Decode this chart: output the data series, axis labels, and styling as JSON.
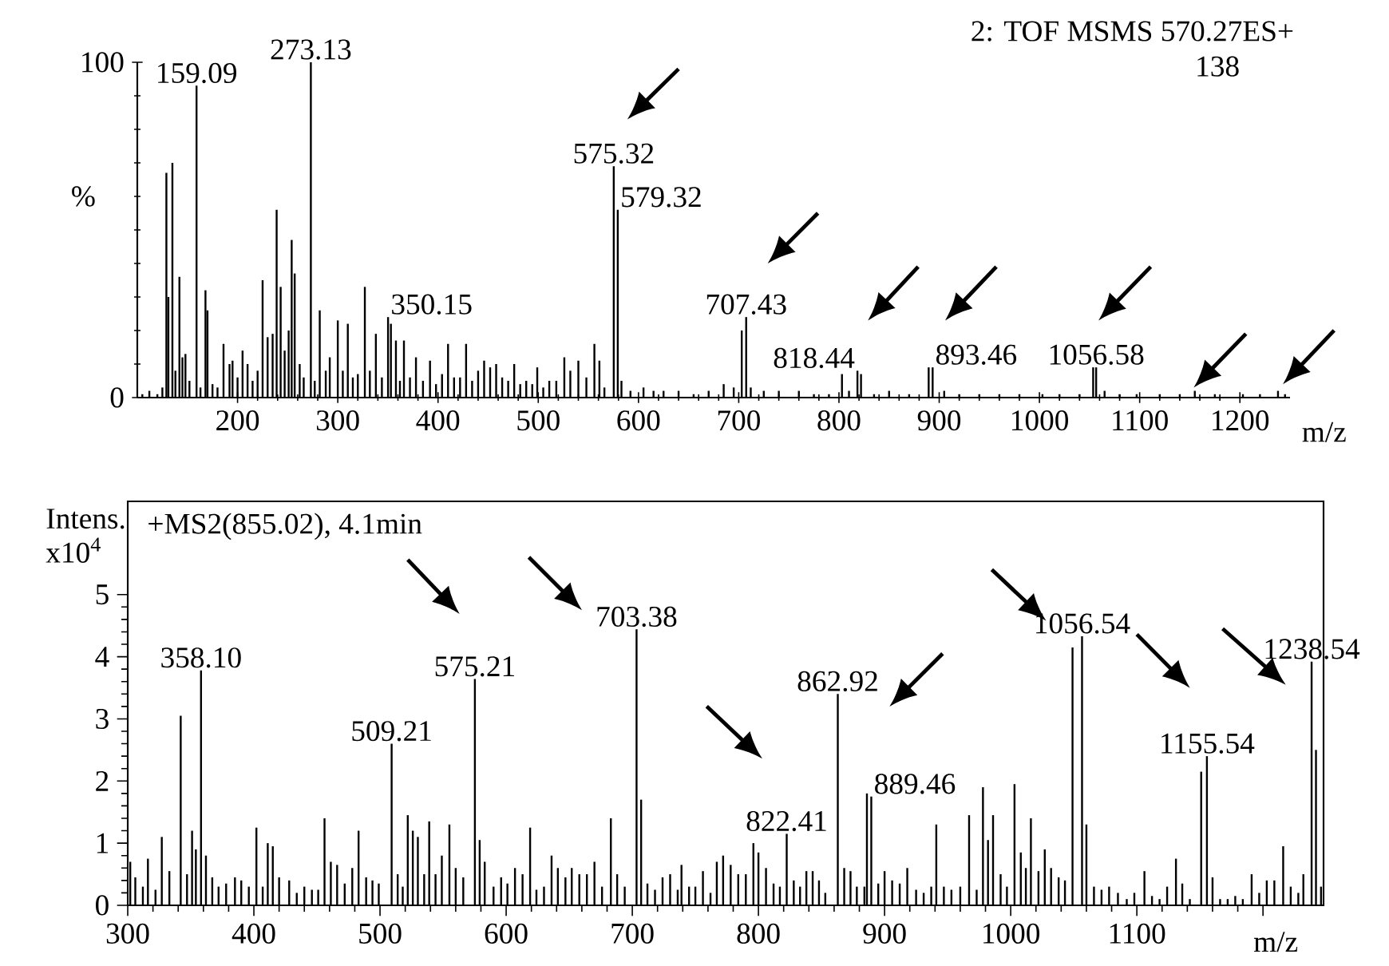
{
  "chart_data": [
    {
      "type": "bar",
      "title": "2: TOF MSMS 570.27ES+",
      "subtitle": "138",
      "xlabel": "m/z",
      "ylabel": "%",
      "color": "#000000",
      "xlim": [
        100,
        1250
      ],
      "ylim": [
        0,
        100
      ],
      "xticks": [
        200,
        300,
        400,
        500,
        600,
        700,
        800,
        900,
        1000,
        1100,
        1200
      ],
      "yticks": [
        0,
        100
      ],
      "x": [
        105,
        112,
        120,
        125,
        129,
        131,
        135,
        138,
        142,
        145,
        148,
        152,
        159.09,
        163,
        168,
        170,
        175,
        180,
        186,
        192,
        195,
        200,
        205,
        210,
        215,
        220,
        225,
        230,
        235,
        239,
        243,
        247,
        251,
        254,
        257,
        262,
        266,
        273.13,
        277,
        282,
        288,
        292,
        300,
        305,
        310,
        315,
        320,
        327,
        332,
        338,
        344,
        350.15,
        353,
        358,
        362,
        366,
        372,
        378,
        385,
        392,
        398,
        404,
        410,
        416,
        422,
        428,
        434,
        440,
        446,
        452,
        458,
        464,
        470,
        476,
        482,
        488,
        494,
        499,
        505,
        511,
        518,
        526,
        532,
        540,
        548,
        556,
        561,
        566,
        575.32,
        579.32,
        583,
        592,
        605,
        615,
        625,
        640,
        655,
        670,
        685,
        695,
        703,
        707.43,
        712,
        725,
        740,
        760,
        775,
        790,
        803,
        810,
        818.44,
        822,
        835,
        850,
        870,
        889.5,
        893.46,
        905,
        920,
        940,
        960,
        980,
        1003,
        1020,
        1040,
        1053.6,
        1056.58,
        1065,
        1080,
        1097,
        1120,
        1140,
        1155,
        1175,
        1203,
        1220,
        1238,
        1245
      ],
      "values": [
        1,
        2,
        1,
        3,
        67,
        30,
        70,
        8,
        36,
        12,
        13,
        5,
        93,
        3,
        32,
        26,
        4,
        3,
        16,
        10,
        11,
        6,
        14,
        10,
        5,
        8,
        35,
        18,
        19,
        56,
        33,
        14,
        20,
        47,
        37,
        10,
        6,
        100,
        5,
        26,
        8,
        12,
        23,
        8,
        22,
        6,
        7,
        33,
        8,
        19,
        6,
        24,
        22,
        17,
        5,
        17,
        6,
        12,
        5,
        11,
        4,
        7,
        16,
        6,
        6,
        16,
        5,
        8,
        11,
        9,
        10,
        6,
        5,
        10,
        4,
        5,
        4,
        9,
        3,
        5,
        5,
        12,
        8,
        11,
        6,
        16,
        11,
        3,
        69,
        56,
        5,
        2,
        3,
        2,
        2,
        2,
        1,
        2,
        4,
        3,
        20,
        24,
        3,
        2,
        2,
        2,
        1,
        1,
        7,
        2,
        8,
        7,
        1,
        2,
        1,
        9,
        9,
        2,
        1,
        1,
        1,
        1,
        1,
        1,
        1,
        9,
        9,
        2,
        1,
        1,
        1,
        1,
        2,
        1,
        1,
        1,
        2,
        1
      ],
      "annotations": [
        {
          "text": "159.09",
          "x": 159.09,
          "y": 93
        },
        {
          "text": "273.13",
          "x": 273.13,
          "y": 100
        },
        {
          "text": "350.15",
          "x": 350.15,
          "y": 24
        },
        {
          "text": "575.32",
          "x": 575.32,
          "y": 69
        },
        {
          "text": "579.32",
          "x": 579.32,
          "y": 56
        },
        {
          "text": "707.43",
          "x": 707.43,
          "y": 24
        },
        {
          "text": "818.44",
          "x": 818.44,
          "y": 8
        },
        {
          "text": "893.46",
          "x": 893.46,
          "y": 9
        },
        {
          "text": "1056.58",
          "x": 1056.58,
          "y": 9
        }
      ]
    },
    {
      "type": "bar",
      "xlabel": "m/z",
      "ylabel": "Intens. x10$^{4}$",
      "color": "#000000",
      "xlim": [
        300,
        1248
      ],
      "ylim": [
        0,
        6.5
      ],
      "xticks": [
        300,
        400,
        500,
        600,
        700,
        800,
        900,
        1000,
        1100,
        {
          "value": 1200,
          "label": null
        }
      ],
      "yticks": [
        0,
        1,
        2,
        3,
        4,
        5
      ],
      "x": [
        302,
        306,
        312,
        316,
        322,
        327,
        333,
        342,
        347,
        351,
        354,
        358.1,
        362,
        367,
        372,
        378,
        385,
        390,
        396,
        402,
        407,
        411,
        415,
        420,
        428,
        434,
        440,
        446,
        451,
        456,
        461,
        466,
        472,
        478,
        483,
        489,
        494,
        499,
        509.21,
        514,
        518,
        522,
        526,
        530,
        535,
        539,
        544,
        549,
        555,
        560,
        566,
        575.21,
        579,
        583,
        590,
        596,
        601,
        607,
        613,
        619,
        624,
        630,
        636,
        641,
        647,
        652,
        658,
        664,
        670,
        676,
        683,
        688,
        694,
        703.38,
        707,
        712,
        718,
        724,
        730,
        736,
        739,
        745,
        750,
        756,
        762,
        767,
        772,
        778,
        784,
        790,
        796,
        800,
        806,
        812,
        817,
        822.41,
        828,
        833,
        838,
        843,
        848,
        853,
        862.92,
        868,
        873,
        878,
        884,
        886,
        889.46,
        895,
        900,
        906,
        912,
        918,
        925,
        931,
        937,
        941,
        947,
        953,
        960,
        967,
        973,
        978,
        982,
        986,
        992,
        997,
        1003,
        1008,
        1012,
        1016,
        1022,
        1027,
        1032,
        1038,
        1043,
        1049,
        1056.54,
        1060,
        1066,
        1072,
        1078,
        1085,
        1092,
        1098,
        1106,
        1112,
        1118,
        1124,
        1131,
        1136,
        1142,
        1151,
        1155.54,
        1160,
        1166,
        1172,
        1178,
        1184,
        1191,
        1197,
        1203,
        1209,
        1216,
        1222,
        1228,
        1232,
        1238.54,
        1242,
        1246
      ],
      "values": [
        0.7,
        0.45,
        0.3,
        0.75,
        0.25,
        1.1,
        0.55,
        3.05,
        0.5,
        1.2,
        0.9,
        3.78,
        0.8,
        0.45,
        0.3,
        0.35,
        0.45,
        0.4,
        0.3,
        1.25,
        0.3,
        1.0,
        0.95,
        0.45,
        0.4,
        0.2,
        0.3,
        0.25,
        0.25,
        1.4,
        0.7,
        0.65,
        0.35,
        0.6,
        1.2,
        0.45,
        0.4,
        0.35,
        2.6,
        0.5,
        0.3,
        1.45,
        1.2,
        1.1,
        0.5,
        1.35,
        0.5,
        0.8,
        1.3,
        0.6,
        0.45,
        3.64,
        1.05,
        0.7,
        0.3,
        0.45,
        0.35,
        0.6,
        0.5,
        1.25,
        0.25,
        0.3,
        0.8,
        0.6,
        0.45,
        0.6,
        0.5,
        0.5,
        0.7,
        0.3,
        1.4,
        0.5,
        0.3,
        4.44,
        1.7,
        0.35,
        0.25,
        0.45,
        0.5,
        0.25,
        0.65,
        0.3,
        0.3,
        0.55,
        0.2,
        0.7,
        0.8,
        0.65,
        0.5,
        0.5,
        1.0,
        0.85,
        0.6,
        0.35,
        0.3,
        1.15,
        0.4,
        0.3,
        0.55,
        0.55,
        0.4,
        0.2,
        3.4,
        0.6,
        0.55,
        0.3,
        0.3,
        1.8,
        1.75,
        0.35,
        0.55,
        0.4,
        0.35,
        0.6,
        0.25,
        0.2,
        0.3,
        1.3,
        0.3,
        0.25,
        0.3,
        1.45,
        0.25,
        1.9,
        1.05,
        1.45,
        0.5,
        0.3,
        1.95,
        0.85,
        0.6,
        1.4,
        0.55,
        0.9,
        0.6,
        0.45,
        0.4,
        4.15,
        4.33,
        1.3,
        0.3,
        0.25,
        0.3,
        0.2,
        0.1,
        0.2,
        0.55,
        0.15,
        0.1,
        0.3,
        0.75,
        0.35,
        0.1,
        2.15,
        2.4,
        0.45,
        0.1,
        0.1,
        0.15,
        0.1,
        0.5,
        0.2,
        0.4,
        0.4,
        0.95,
        0.3,
        0.2,
        0.5,
        3.92,
        2.5,
        0.3
      ],
      "annotations": [
        "+MS2(855.02), 4.1min",
        {
          "text": "358.10",
          "x": 358.1,
          "y": 3.78
        },
        {
          "text": "509.21",
          "x": 509.21,
          "y": 2.6
        },
        {
          "text": "575.21",
          "x": 575.21,
          "y": 3.64
        },
        {
          "text": "703.38",
          "x": 703.38,
          "y": 4.44
        },
        {
          "text": "822.41",
          "x": 822.41,
          "y": 1.15
        },
        {
          "text": "862.92",
          "x": 862.92,
          "y": 3.4
        },
        {
          "text": "889.46",
          "x": 889.46,
          "y": 1.75
        },
        {
          "text": "1056.54",
          "x": 1056.54,
          "y": 4.33
        },
        {
          "text": "1155.54",
          "x": 1155.54,
          "y": 2.4
        },
        {
          "text": "1238.54",
          "x": 1238.54,
          "y": 3.92
        }
      ]
    }
  ]
}
